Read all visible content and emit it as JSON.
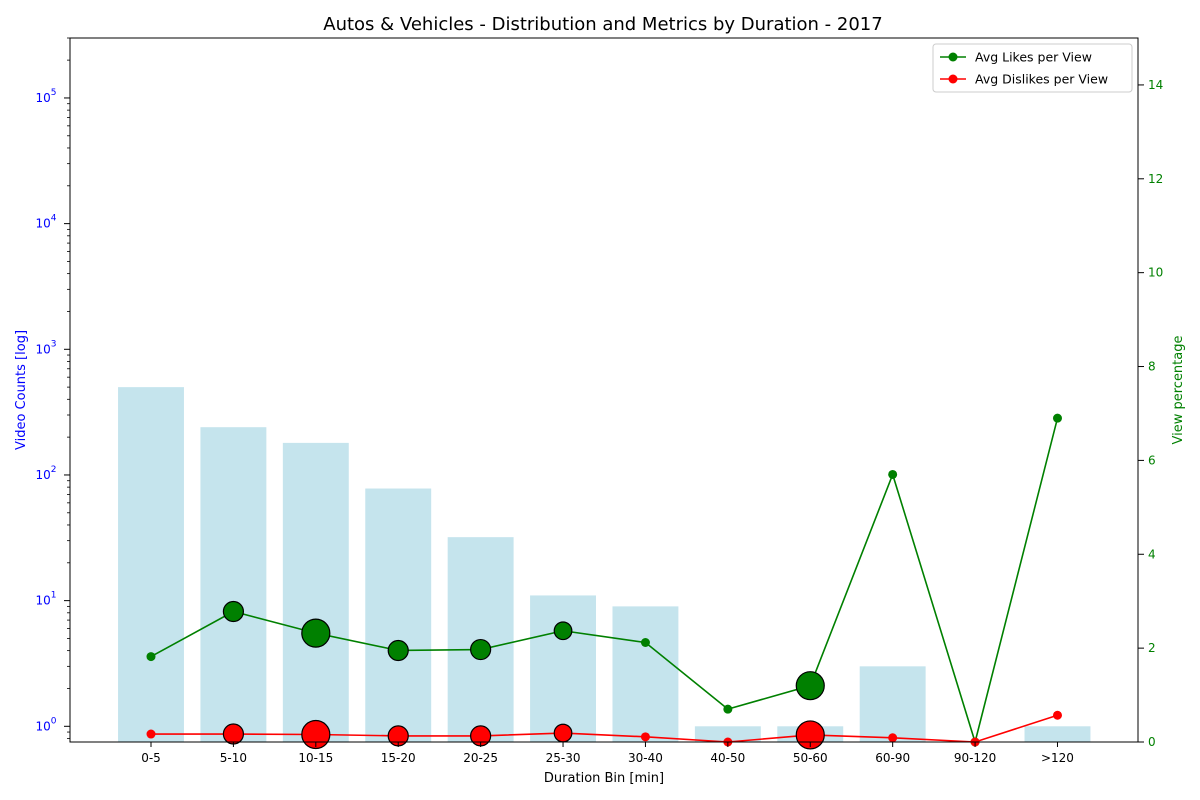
{
  "chart_data": {
    "type": "bar+line",
    "title": "Autos & Vehicles - Distribution and Metrics by Duration - 2017",
    "xlabel": "Duration Bin [min]",
    "ylabel_left": "Video Counts [log]",
    "ylabel_right": "View percentage",
    "categories": [
      "0-5",
      "5-10",
      "10-15",
      "15-20",
      "20-25",
      "25-30",
      "30-40",
      "40-50",
      "50-60",
      "60-90",
      "90-120",
      ">120"
    ],
    "bar_counts": [
      500,
      240,
      180,
      78,
      32,
      11,
      9,
      1,
      1,
      3,
      0,
      1
    ],
    "left_axis": {
      "scale": "log",
      "ylim": [
        0.75,
        300000
      ],
      "tick_labels": [
        "10^0",
        "10^1",
        "10^2",
        "10^3",
        "10^4",
        "10^5"
      ]
    },
    "right_axis": {
      "ylim": [
        0,
        15
      ],
      "ticks": [
        0,
        2,
        4,
        6,
        8,
        10,
        12,
        14
      ]
    },
    "series": [
      {
        "name": "Avg Likes per View",
        "color": "#008000",
        "values": [
          1.82,
          2.78,
          2.32,
          1.95,
          1.97,
          2.37,
          2.12,
          0.7,
          1.2,
          5.7,
          0.0,
          6.9
        ]
      },
      {
        "name": "Avg Dislikes per View",
        "color": "#ff0000",
        "values": [
          0.17,
          0.17,
          0.16,
          0.13,
          0.13,
          0.19,
          0.11,
          0.0,
          0.15,
          0.09,
          0.0,
          0.57
        ]
      }
    ],
    "highlight_sizes": [
      0,
      1,
      2,
      1,
      1,
      0.7,
      0,
      0,
      2,
      0,
      0,
      0
    ],
    "legend": {
      "placement": "top-right",
      "entries": [
        "Avg Likes per View",
        "Avg Dislikes per View"
      ]
    },
    "grid": false,
    "colors": {
      "bars": "#add8e6",
      "left_axis": "#0000ff",
      "right_axis": "#008000"
    }
  }
}
